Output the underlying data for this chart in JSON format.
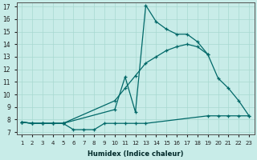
{
  "xlabel": "Humidex (Indice chaleur)",
  "bg_color": "#c8ece8",
  "grid_color": "#a8d8d0",
  "line_color": "#006868",
  "xlim": [
    0.5,
    23.5
  ],
  "ylim": [
    6.8,
    17.3
  ],
  "xticks": [
    1,
    2,
    3,
    4,
    5,
    6,
    7,
    8,
    9,
    10,
    11,
    12,
    13,
    14,
    15,
    16,
    17,
    18,
    19,
    20,
    21,
    22,
    23
  ],
  "yticks": [
    7,
    8,
    9,
    10,
    11,
    12,
    13,
    14,
    15,
    16,
    17
  ],
  "line1_x": [
    1,
    2,
    3,
    4,
    5,
    10,
    11,
    12,
    13,
    14,
    15,
    16,
    17,
    18,
    19
  ],
  "line1_y": [
    7.8,
    7.7,
    7.7,
    7.7,
    7.7,
    8.8,
    11.4,
    8.6,
    17.1,
    15.8,
    15.2,
    14.8,
    14.8,
    14.2,
    13.2
  ],
  "line2_x": [
    1,
    2,
    3,
    4,
    5,
    10,
    11,
    12,
    13,
    14,
    15,
    16,
    17,
    18,
    19,
    20,
    21,
    22,
    23
  ],
  "line2_y": [
    7.8,
    7.7,
    7.7,
    7.7,
    7.7,
    9.5,
    10.5,
    11.5,
    12.5,
    13.0,
    13.5,
    13.8,
    14.0,
    13.8,
    13.2,
    11.3,
    10.5,
    9.5,
    8.3
  ],
  "line3_x": [
    1,
    2,
    3,
    4,
    5,
    6,
    7,
    8,
    9,
    10,
    11,
    12,
    13,
    19,
    20,
    21,
    22,
    23
  ],
  "line3_y": [
    7.8,
    7.7,
    7.7,
    7.7,
    7.7,
    7.2,
    7.2,
    7.2,
    7.7,
    7.7,
    7.7,
    7.7,
    7.7,
    8.3,
    8.3,
    8.3,
    8.3,
    8.3
  ]
}
